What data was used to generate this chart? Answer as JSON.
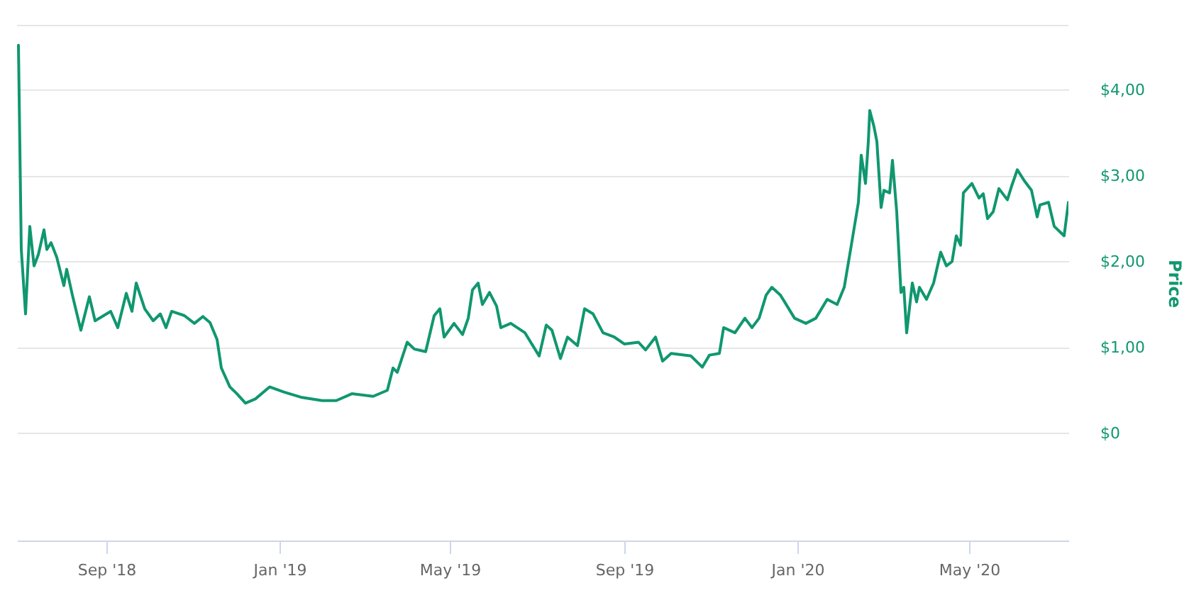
{
  "chart_data": {
    "type": "line",
    "ylabel": "Price",
    "grid": "y",
    "color": "#10976f",
    "xlim": [
      "2018-06-30",
      "2020-07-10"
    ],
    "ylim": [
      -1.25,
      4.75
    ],
    "xticks": [
      {
        "value": "2018-09-01",
        "label": "Sep '18"
      },
      {
        "value": "2019-01-01",
        "label": "Jan '19"
      },
      {
        "value": "2019-05-01",
        "label": "May '19"
      },
      {
        "value": "2019-09-01",
        "label": "Sep '19"
      },
      {
        "value": "2020-01-01",
        "label": "Jan '20"
      },
      {
        "value": "2020-05-01",
        "label": "May '20"
      }
    ],
    "yticks": [
      {
        "value": 0,
        "label": "$0"
      },
      {
        "value": 1,
        "label": "$1,00"
      },
      {
        "value": 2,
        "label": "$2,00"
      },
      {
        "value": 3,
        "label": "$3,00"
      },
      {
        "value": 4,
        "label": "$4,00"
      }
    ],
    "x": [
      "2018-07-01",
      "2018-07-03",
      "2018-07-06",
      "2018-07-09",
      "2018-07-12",
      "2018-07-15",
      "2018-07-19",
      "2018-07-21",
      "2018-07-24",
      "2018-07-28",
      "2018-08-02",
      "2018-08-04",
      "2018-08-08",
      "2018-08-14",
      "2018-08-20",
      "2018-08-24",
      "2018-09-04",
      "2018-09-09",
      "2018-09-15",
      "2018-09-19",
      "2018-09-22",
      "2018-09-28",
      "2018-10-04",
      "2018-10-09",
      "2018-10-13",
      "2018-10-17",
      "2018-10-26",
      "2018-11-02",
      "2018-11-08",
      "2018-11-13",
      "2018-11-18",
      "2018-11-21",
      "2018-11-27",
      "2018-12-02",
      "2018-12-08",
      "2018-12-15",
      "2018-12-25",
      "2019-01-04",
      "2019-01-16",
      "2019-01-31",
      "2019-02-10",
      "2019-02-21",
      "2019-03-08",
      "2019-03-18",
      "2019-03-22",
      "2019-03-25",
      "2019-04-01",
      "2019-04-06",
      "2019-04-14",
      "2019-04-20",
      "2019-04-24",
      "2019-04-27",
      "2019-05-04",
      "2019-05-10",
      "2019-05-14",
      "2019-05-17",
      "2019-05-21",
      "2019-05-24",
      "2019-05-29",
      "2019-06-03",
      "2019-06-06",
      "2019-06-13",
      "2019-06-23",
      "2019-07-03",
      "2019-07-08",
      "2019-07-12",
      "2019-07-18",
      "2019-07-23",
      "2019-07-30",
      "2019-08-04",
      "2019-08-10",
      "2019-08-17",
      "2019-08-25",
      "2019-09-01",
      "2019-09-11",
      "2019-09-16",
      "2019-09-23",
      "2019-09-28",
      "2019-10-04",
      "2019-10-18",
      "2019-10-26",
      "2019-10-31",
      "2019-11-07",
      "2019-11-10",
      "2019-11-18",
      "2019-11-25",
      "2019-11-30",
      "2019-12-05",
      "2019-12-10",
      "2019-12-14",
      "2019-12-20",
      "2019-12-23",
      "2019-12-30",
      "2020-01-07",
      "2020-01-14",
      "2020-01-22",
      "2020-01-29",
      "2020-02-03",
      "2020-02-08",
      "2020-02-13",
      "2020-02-15",
      "2020-02-18",
      "2020-02-20",
      "2020-02-21",
      "2020-02-24",
      "2020-02-26",
      "2020-02-29",
      "2020-03-02",
      "2020-03-06",
      "2020-03-08",
      "2020-03-11",
      "2020-03-14",
      "2020-03-16",
      "2020-03-18",
      "2020-03-22",
      "2020-03-25",
      "2020-03-27",
      "2020-04-01",
      "2020-04-06",
      "2020-04-11",
      "2020-04-15",
      "2020-04-19",
      "2020-04-22",
      "2020-04-25",
      "2020-04-27",
      "2020-05-03",
      "2020-05-08",
      "2020-05-11",
      "2020-05-14",
      "2020-05-18",
      "2020-05-22",
      "2020-05-28",
      "2020-05-31",
      "2020-06-04",
      "2020-06-09",
      "2020-06-14",
      "2020-06-18",
      "2020-06-20",
      "2020-06-26",
      "2020-06-30",
      "2020-07-07",
      "2020-07-10"
    ],
    "values": [
      4.52,
      2.14,
      1.39,
      2.41,
      1.95,
      2.08,
      2.37,
      2.14,
      2.22,
      2.05,
      1.72,
      1.91,
      1.61,
      1.2,
      1.59,
      1.31,
      1.42,
      1.23,
      1.63,
      1.42,
      1.75,
      1.45,
      1.31,
      1.39,
      1.23,
      1.42,
      1.37,
      1.28,
      1.36,
      1.29,
      1.09,
      0.76,
      0.54,
      0.46,
      0.35,
      0.4,
      0.54,
      0.48,
      0.42,
      0.38,
      0.38,
      0.46,
      0.43,
      0.5,
      0.76,
      0.71,
      1.06,
      0.98,
      0.95,
      1.37,
      1.45,
      1.12,
      1.28,
      1.15,
      1.34,
      1.67,
      1.75,
      1.5,
      1.64,
      1.48,
      1.23,
      1.28,
      1.17,
      0.9,
      1.26,
      1.2,
      0.87,
      1.12,
      1.02,
      1.45,
      1.39,
      1.17,
      1.12,
      1.04,
      1.06,
      0.97,
      1.12,
      0.84,
      0.93,
      0.9,
      0.77,
      0.91,
      0.93,
      1.23,
      1.17,
      1.34,
      1.23,
      1.34,
      1.61,
      1.7,
      1.61,
      1.53,
      1.34,
      1.28,
      1.34,
      1.56,
      1.5,
      1.7,
      2.19,
      2.69,
      3.24,
      2.91,
      3.4,
      3.76,
      3.57,
      3.4,
      2.63,
      2.83,
      2.8,
      3.18,
      2.58,
      1.64,
      1.7,
      1.17,
      1.75,
      1.53,
      1.7,
      1.56,
      1.75,
      2.11,
      1.95,
      2.0,
      2.3,
      2.19,
      2.8,
      2.91,
      2.74,
      2.79,
      2.5,
      2.58,
      2.85,
      2.72,
      2.88,
      3.07,
      2.94,
      2.83,
      2.52,
      2.66,
      2.69,
      2.41,
      2.3,
      2.69
    ]
  }
}
